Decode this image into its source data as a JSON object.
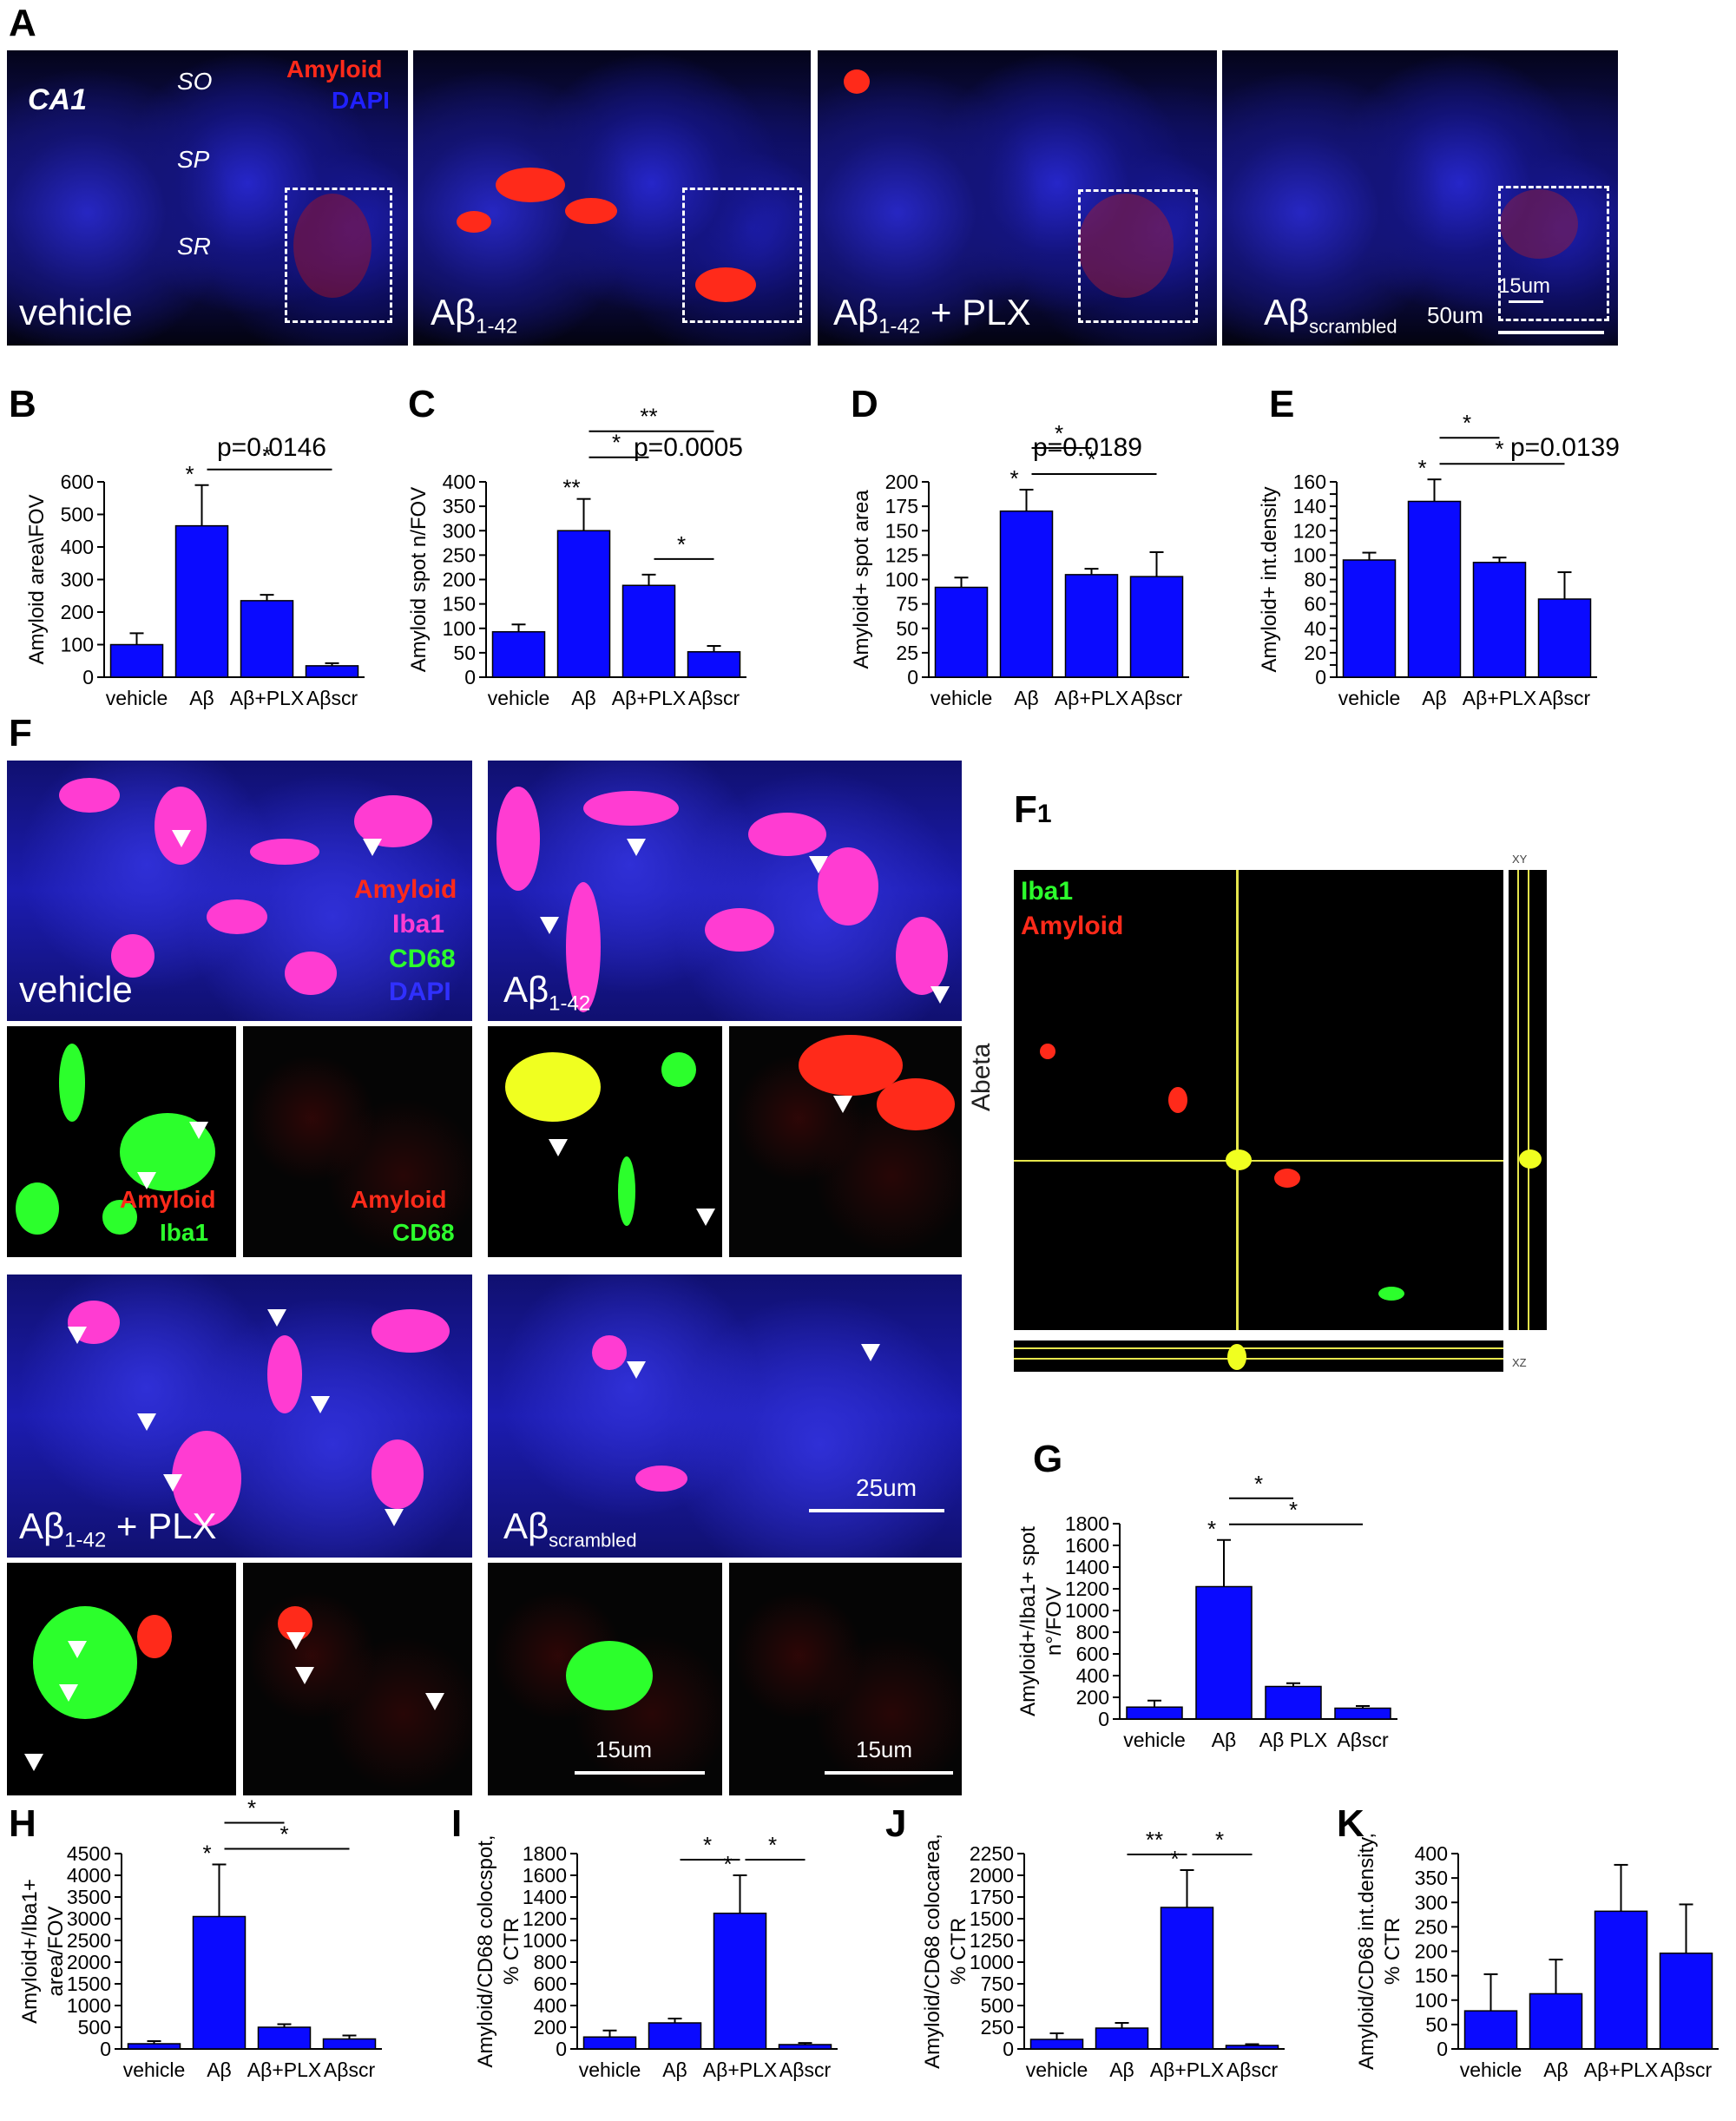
{
  "panels": {
    "A": {
      "label": "A",
      "region": "CA1",
      "layers": [
        "SO",
        "SP",
        "SR"
      ],
      "legend": {
        "amyloid": "Amyloid",
        "dapi": "DAPI"
      },
      "conditions": [
        "vehicle",
        "Aβ",
        "Aβ",
        "Aβ"
      ],
      "subscripts": [
        "",
        "1-42",
        "1-42",
        "scrambled"
      ],
      "plx_suffix": " + PLX",
      "scale_big": "50um",
      "scale_small": "15um"
    },
    "F": {
      "label": "F",
      "legend": {
        "amyloid": "Amyloid",
        "iba1": "Iba1",
        "cd68": "CD68",
        "dapi": "DAPI"
      },
      "top_labels": [
        "vehicle",
        "Aβ"
      ],
      "top_sub": [
        "",
        "1-42"
      ],
      "bottom_labels": [
        "Aβ",
        "Aβ"
      ],
      "bottom_sub": [
        "1-42",
        "scrambled"
      ],
      "plx_suffix": " + PLX",
      "inset_labels": {
        "amyloid": "Amyloid",
        "iba1": "Iba1",
        "cd68": "CD68"
      },
      "scale_big": "25um",
      "scale_small": "15um"
    },
    "F1": {
      "label": "F",
      "label_sub": "1",
      "legend": {
        "iba1": "Iba1",
        "amyloid": "Amyloid"
      },
      "side_label": "Abeta",
      "xy": "XY",
      "xz": "XZ"
    }
  },
  "colors": {
    "bar": "#0a0aff",
    "red": "#ff2a1a",
    "magenta": "#ff3cd2",
    "green": "#2cff2c",
    "blue": "#1e1ec8",
    "yellow": "#f0ff20"
  },
  "chart_data": [
    {
      "id": "B",
      "type": "bar",
      "panel_label": "B",
      "pvalue": "p=0.0146",
      "ylabel": "Amyloid area\\FOV",
      "categories": [
        "vehicle",
        "Aβ",
        "Aβ+PLX",
        "Aβscr"
      ],
      "values": [
        100,
        465,
        235,
        35
      ],
      "errors": [
        35,
        125,
        18,
        8
      ],
      "ylim": [
        0,
        600
      ],
      "yticks": [
        0,
        100,
        200,
        300,
        400,
        500,
        600
      ],
      "bar_stars": [
        "",
        "*",
        "",
        ""
      ],
      "brackets": [
        {
          "from": 1,
          "to": 3,
          "text": "*",
          "level": 0
        }
      ]
    },
    {
      "id": "C",
      "type": "bar",
      "panel_label": "C",
      "pvalue": "p=0.0005",
      "ylabel": "Amyloid spot n/FOV",
      "categories": [
        "vehicle",
        "Aβ",
        "Aβ+PLX",
        "Aβscr"
      ],
      "values": [
        93,
        300,
        188,
        52
      ],
      "errors": [
        15,
        65,
        22,
        12
      ],
      "ylim": [
        0,
        400
      ],
      "yticks": [
        0,
        50,
        100,
        150,
        200,
        250,
        300,
        350,
        400
      ],
      "bar_stars": [
        "",
        "**",
        "",
        ""
      ],
      "brackets": [
        {
          "from": 1,
          "to": 2,
          "text": "*",
          "level": 1
        },
        {
          "from": 1,
          "to": 3,
          "text": "**",
          "level": 2
        },
        {
          "from": 2,
          "to": 3,
          "text": "*",
          "level": 0
        }
      ]
    },
    {
      "id": "D",
      "type": "bar",
      "panel_label": "D",
      "pvalue": "p=0.0189",
      "ylabel": "Amyloid+ spot area",
      "categories": [
        "vehicle",
        "Aβ",
        "Aβ+PLX",
        "Aβscr"
      ],
      "values": [
        92,
        170,
        105,
        103
      ],
      "errors": [
        10,
        22,
        6,
        25
      ],
      "ylim": [
        0,
        200
      ],
      "yticks": [
        0,
        25,
        50,
        75,
        100,
        125,
        150,
        175,
        200
      ],
      "bar_stars": [
        "",
        "*",
        "",
        ""
      ],
      "brackets": [
        {
          "from": 1,
          "to": 2,
          "text": "*",
          "level": 1
        },
        {
          "from": 1,
          "to": 3,
          "text": "*",
          "level": 0
        }
      ]
    },
    {
      "id": "E",
      "type": "bar",
      "panel_label": "E",
      "pvalue": "p=0.0139",
      "ylabel": "Amyloid+ int.density",
      "categories": [
        "vehicle",
        "Aβ",
        "Aβ+PLX",
        "Aβscr"
      ],
      "values": [
        96,
        144,
        94,
        64
      ],
      "errors": [
        6,
        18,
        4,
        22
      ],
      "ylim": [
        0,
        160
      ],
      "yticks": [
        0,
        10,
        20,
        30,
        40,
        50,
        60,
        70,
        80,
        90,
        100,
        110,
        120,
        130,
        140,
        150,
        160
      ],
      "yticklabels": [
        "0",
        "",
        "20",
        "",
        "40",
        "",
        "60",
        "",
        "80",
        "",
        "100",
        "",
        "120",
        "",
        "140",
        "",
        "160"
      ],
      "bar_stars": [
        "",
        "*",
        "",
        ""
      ],
      "brackets": [
        {
          "from": 1,
          "to": 2,
          "text": "*",
          "level": 1
        },
        {
          "from": 1,
          "to": 3,
          "text": "*",
          "level": 0
        }
      ]
    },
    {
      "id": "G",
      "type": "bar",
      "panel_label": "G",
      "pvalue": "",
      "ylabel": "Amyloid+/Iba1+ spot n°/FOV",
      "categories": [
        "vehicle",
        "Aβ",
        "Aβ PLX",
        "Aβscr"
      ],
      "values": [
        110,
        1220,
        300,
        100
      ],
      "errors": [
        60,
        430,
        30,
        20
      ],
      "ylim": [
        0,
        1800
      ],
      "yticks": [
        0,
        200,
        400,
        600,
        800,
        1000,
        1200,
        1400,
        1600,
        1800
      ],
      "bar_stars": [
        "",
        "*",
        "",
        ""
      ],
      "brackets": [
        {
          "from": 1,
          "to": 2,
          "text": "*",
          "level": 1
        },
        {
          "from": 1,
          "to": 3,
          "text": "*",
          "level": 0
        }
      ]
    },
    {
      "id": "H",
      "type": "bar",
      "panel_label": "H",
      "pvalue": "",
      "ylabel": "Amyloid+/Iba1+ area/FOV",
      "categories": [
        "vehicle",
        "Aβ",
        "Aβ+PLX",
        "Aβscr"
      ],
      "values": [
        120,
        3050,
        500,
        230
      ],
      "errors": [
        60,
        1200,
        70,
        80
      ],
      "ylim": [
        0,
        4500
      ],
      "yticks": [
        0,
        500,
        1000,
        1500,
        2000,
        2500,
        3000,
        3500,
        4000,
        4500
      ],
      "bar_stars": [
        "",
        "*",
        "",
        ""
      ],
      "brackets": [
        {
          "from": 1,
          "to": 2,
          "text": "*",
          "level": 1
        },
        {
          "from": 1,
          "to": 3,
          "text": "*",
          "level": 0
        }
      ]
    },
    {
      "id": "I",
      "type": "bar",
      "panel_label": "I",
      "pvalue": "",
      "ylabel": "Amyloid/CD68 colocspot, % CTR",
      "categories": [
        "vehicle",
        "Aβ",
        "Aβ+PLX",
        "Aβscr"
      ],
      "values": [
        110,
        240,
        1250,
        40
      ],
      "errors": [
        60,
        40,
        350,
        15
      ],
      "ylim": [
        0,
        1800
      ],
      "yticks": [
        0,
        200,
        400,
        600,
        800,
        1000,
        1200,
        1400,
        1600,
        1800
      ],
      "bar_stars": [
        "",
        "",
        "*",
        ""
      ],
      "brackets": [
        {
          "from": 1,
          "to": 2,
          "text": "*",
          "level": 0
        },
        {
          "from": 2,
          "to": 3,
          "text": "*",
          "level": 0
        }
      ]
    },
    {
      "id": "J",
      "type": "bar",
      "panel_label": "J",
      "pvalue": "",
      "ylabel": "Amyloid/CD68 colocarea, % CTR",
      "categories": [
        "vehicle",
        "Aβ",
        "Aβ+PLX",
        "Aβscr"
      ],
      "values": [
        110,
        240,
        1630,
        40
      ],
      "errors": [
        70,
        60,
        430,
        15
      ],
      "ylim": [
        0,
        2250
      ],
      "yticks": [
        0,
        250,
        500,
        750,
        1000,
        1250,
        1500,
        1750,
        2000,
        2250
      ],
      "bar_stars": [
        "",
        "",
        "*",
        ""
      ],
      "brackets": [
        {
          "from": 1,
          "to": 2,
          "text": "**",
          "level": 0
        },
        {
          "from": 2,
          "to": 3,
          "text": "*",
          "level": 0
        }
      ]
    },
    {
      "id": "K",
      "type": "bar",
      "panel_label": "K",
      "pvalue": "",
      "ylabel": "Amyloid/CD68 int.density, % CTR",
      "categories": [
        "vehicle",
        "Aβ",
        "Aβ+PLX",
        "Aβscr"
      ],
      "values": [
        78,
        113,
        282,
        196
      ],
      "errors": [
        75,
        70,
        95,
        100
      ],
      "ylim": [
        0,
        400
      ],
      "yticks": [
        0,
        50,
        100,
        150,
        200,
        250,
        300,
        350,
        400
      ],
      "bar_stars": [
        "",
        "",
        "",
        ""
      ],
      "brackets": []
    }
  ]
}
